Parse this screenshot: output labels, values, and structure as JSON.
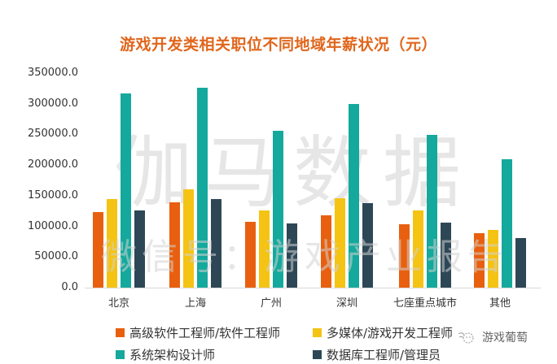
{
  "chart_data": {
    "type": "bar",
    "title": "游戏开发类相关职位不同地域年薪状况（元）",
    "xlabel": "",
    "ylabel": "",
    "ylim": [
      0,
      350000
    ],
    "yticks": [
      "350000.0",
      "300000.0",
      "250000.0",
      "200000.0",
      "150000.0",
      "100000.0",
      "50000.0",
      "0.0"
    ],
    "grid": false,
    "legend_position": "bottom",
    "categories": [
      "北京",
      "上海",
      "广州",
      "深圳",
      "七座重点城市",
      "其他"
    ],
    "series": [
      {
        "name": "高级软件工程师/软件工程师",
        "color": "#e8600f",
        "values": [
          123000,
          139000,
          107000,
          118000,
          103000,
          89000
        ]
      },
      {
        "name": "多媒体/游戏开发工程师",
        "color": "#f5c313",
        "values": [
          145000,
          160000,
          126000,
          146000,
          126000,
          94000
        ]
      },
      {
        "name": "系统架构设计师",
        "color": "#14a99c",
        "values": [
          317000,
          326000,
          256000,
          300000,
          249000,
          210000
        ]
      },
      {
        "name": "数据库工程师/管理员",
        "color": "#2e4756",
        "values": [
          126000,
          145000,
          105000,
          138000,
          106000,
          81000
        ]
      }
    ]
  },
  "watermark": {
    "line1": "伽马数据",
    "line2": "微信号：游戏产业报告"
  },
  "brand": {
    "label": "游戏葡萄"
  }
}
